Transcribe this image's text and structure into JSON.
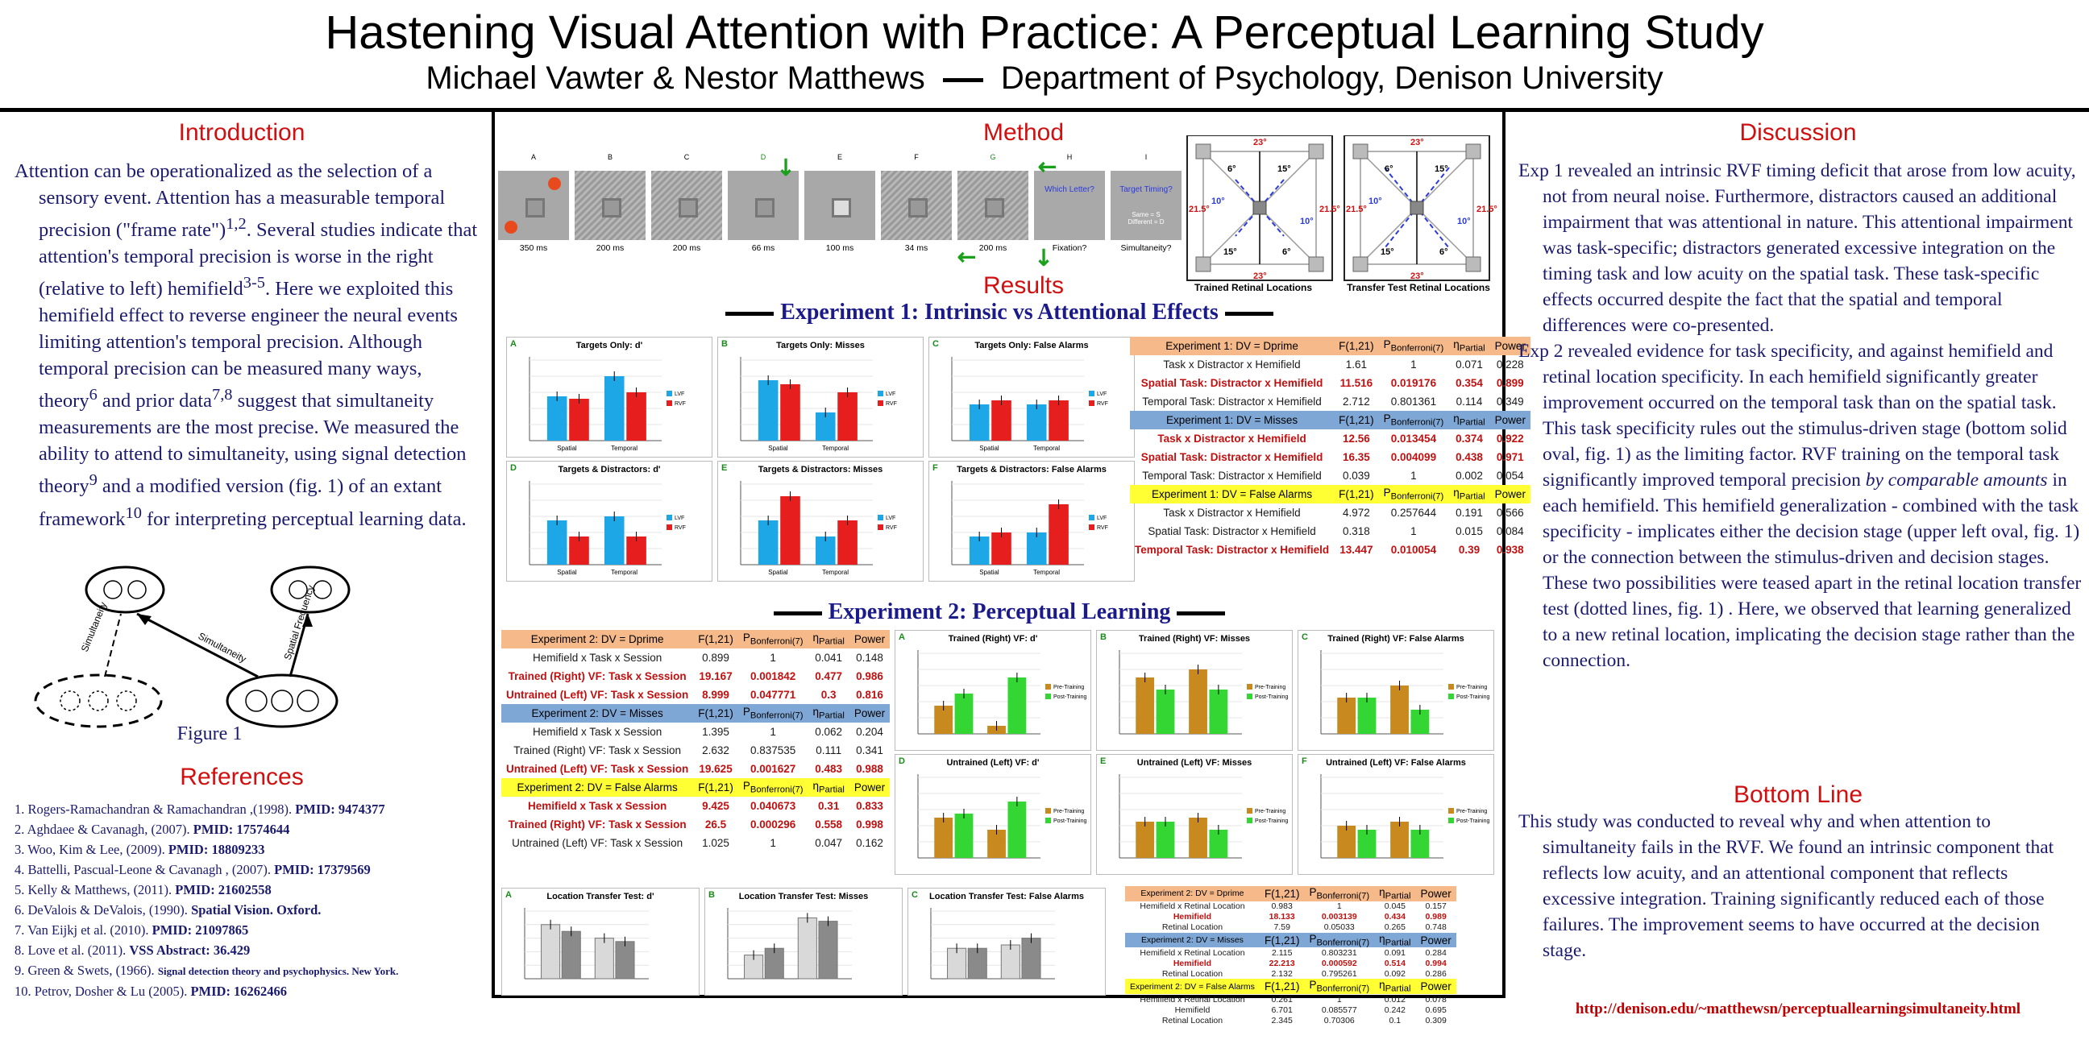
{
  "header": {
    "title": "Hastening Visual Attention with Practice: A Perceptual Learning Study",
    "authors": "Michael Vawter & Nestor Matthews",
    "department": "Department of Psychology, Denison University"
  },
  "intro": {
    "heading": "Introduction",
    "text_html": "Attention can be operationalized as the selection of a sensory event.  Attention has a measurable temporal precision (\"frame rate\")<sup>1,2</sup>. Several studies indicate that attention's temporal precision is worse in the right (relative to left) hemifield<sup>3-5</sup>. Here we exploited this hemifield effect to reverse engineer the neural events limiting attention's temporal precision. Although temporal precision can be measured many ways, theory<sup>6</sup> and prior data<sup>7,8</sup> suggest that simultaneity measurements are the most precise. We measured the ability to attend to simultaneity, using signal detection theory<sup>9</sup> and a modified version (fig. 1) of  an extant framework<sup>10</sup> for interpreting perceptual learning data.",
    "figure_caption": "Figure 1",
    "fig_labels": [
      "Simultaneity",
      "Simultaneity",
      "Spatial Frequency"
    ]
  },
  "references": {
    "heading": "References",
    "items": [
      {
        "text": "1. Rogers-Ramachandran & Ramachandran ,(1998). ",
        "bold": "PMID: 9474377"
      },
      {
        "text": "2. Aghdaee & Cavanagh, (2007). ",
        "bold": "PMID: 17574644"
      },
      {
        "text": "3. Woo, Kim & Lee, (2009). ",
        "bold": "PMID: 18809233"
      },
      {
        "text": "4. Battelli, Pascual-Leone & Cavanagh , (2007). ",
        "bold": "PMID: 17379569"
      },
      {
        "text": "5. Kelly & Matthews, (2011). ",
        "bold": "PMID: 21602558"
      },
      {
        "text": "6. DeValois & DeValois, (1990).  ",
        "bold": "Spatial Vision. Oxford."
      },
      {
        "text": "7. Van Eijkj et al. (2010). ",
        "bold": "PMID: 21097865"
      },
      {
        "text": "8. Love et al. (2011). ",
        "bold": "VSS Abstract: 36.429"
      },
      {
        "text": "9. Green & Swets, (1966). ",
        "bold": "Signal detection theory and psychophysics. New York."
      },
      {
        "text": "10. Petrov, Dosher & Lu (2005). ",
        "bold": "PMID: 16262466"
      }
    ]
  },
  "method": {
    "heading": "Method",
    "frame_letters": [
      "A",
      "B",
      "C",
      "D",
      "E",
      "F",
      "G",
      "H",
      "I"
    ],
    "durations": [
      "350 ms",
      "200 ms",
      "200 ms",
      "66 ms",
      "100 ms",
      "34 ms",
      "200 ms",
      "Fixation?",
      "Simultaneity?"
    ],
    "which_letter": "Which Letter?",
    "target_timing": "Target Timing?",
    "same_diff": "Same = S\nDifferent = D",
    "retinal_caption_1": "Trained Retinal Locations",
    "retinal_caption_2": "Transfer Test Retinal Locations",
    "retinal_labels": [
      "23°",
      "6°",
      "15°",
      "10°",
      "21.5°"
    ]
  },
  "results": {
    "heading": "Results",
    "exp1_banner": "Experiment 1: Intrinsic vs Attentional Effects",
    "exp2_banner": "Experiment 2: Perceptual Learning",
    "exp1_panels": [
      {
        "letter": "A",
        "title": "Targets Only: d'",
        "x": [
          "Spatial",
          "Temporal"
        ],
        "legend": [
          "LVF",
          "RVF"
        ],
        "ylim": [
          0,
          3
        ]
      },
      {
        "letter": "B",
        "title": "Targets Only: Misses",
        "x": [
          "Spatial",
          "Temporal"
        ],
        "legend": [
          "LVF",
          "RVF"
        ],
        "ylim": [
          0,
          0.4
        ]
      },
      {
        "letter": "C",
        "title": "Targets Only: False Alarms",
        "x": [
          "Spatial",
          "Temporal"
        ],
        "legend": [
          "LVF",
          "RVF"
        ],
        "ylim": [
          0,
          0.4
        ]
      },
      {
        "letter": "D",
        "title": "Targets & Distractors: d'",
        "x": [
          "Spatial",
          "Temporal"
        ],
        "legend": [
          "LVF",
          "RVF"
        ],
        "ylim": [
          0,
          3
        ]
      },
      {
        "letter": "E",
        "title": "Targets & Distractors: Misses",
        "x": [
          "Spatial",
          "Temporal"
        ],
        "legend": [
          "LVF",
          "RVF"
        ],
        "ylim": [
          0,
          0.4
        ]
      },
      {
        "letter": "F",
        "title": "Targets & Distractors: False Alarms",
        "x": [
          "Spatial",
          "Temporal"
        ],
        "legend": [
          "LVF",
          "RVF"
        ],
        "ylim": [
          0,
          0.4
        ]
      }
    ],
    "exp2_panels": [
      {
        "letter": "A",
        "title": "Trained (Right) VF: d'",
        "legend": [
          "Pre-Training",
          "Post-Training"
        ]
      },
      {
        "letter": "B",
        "title": "Trained (Right) VF: Misses",
        "legend": [
          "Pre-Training",
          "Post-Training"
        ]
      },
      {
        "letter": "C",
        "title": "Trained (Right) VF: False Alarms",
        "legend": [
          "Pre-Training",
          "Post-Training"
        ]
      },
      {
        "letter": "D",
        "title": "Untrained (Left) VF: d'",
        "legend": [
          "Pre-Training",
          "Post-Training"
        ]
      },
      {
        "letter": "E",
        "title": "Untrained (Left) VF: Misses",
        "legend": [
          "Pre-Training",
          "Post-Training"
        ]
      },
      {
        "letter": "F",
        "title": "Untrained (Left) VF: False Alarms",
        "legend": [
          "Pre-Training",
          "Post-Training"
        ]
      }
    ],
    "transfer_panels": [
      {
        "letter": "A",
        "title": "Location Transfer Test: d'"
      },
      {
        "letter": "B",
        "title": "Location Transfer Test: Misses"
      },
      {
        "letter": "C",
        "title": "Location Transfer Test: False Alarms"
      }
    ],
    "col_headers": [
      "F(1,21)",
      "P<sub>Bonferroni(7)</sub>",
      "η<sub>Partial</sub>",
      "Power"
    ],
    "exp1_table": [
      {
        "head": "Experiment 1: DV = Dprime",
        "color": "#f5b98a",
        "rows": [
          {
            "label": "Task x Distractor x Hemifield",
            "v": [
              "1.61",
              "1",
              "0.071",
              "0.228"
            ],
            "sig": false
          },
          {
            "label": "Spatial Task: Distractor x Hemifield",
            "v": [
              "11.516",
              "0.019176",
              "0.354",
              "0.899"
            ],
            "sig": true
          },
          {
            "label": "Temporal Task: Distractor x Hemifield",
            "v": [
              "2.712",
              "0.801361",
              "0.114",
              "0.349"
            ],
            "sig": false
          }
        ]
      },
      {
        "head": "Experiment 1: DV = Misses",
        "color": "#7fa7d6",
        "rows": [
          {
            "label": "Task x Distractor x Hemifield",
            "v": [
              "12.56",
              "0.013454",
              "0.374",
              "0.922"
            ],
            "sig": true
          },
          {
            "label": "Spatial Task: Distractor x Hemifield",
            "v": [
              "16.35",
              "0.004099",
              "0.438",
              "0.971"
            ],
            "sig": true
          },
          {
            "label": "Temporal Task: Distractor x Hemifield",
            "v": [
              "0.039",
              "1",
              "0.002",
              "0.054"
            ],
            "sig": false
          }
        ]
      },
      {
        "head": "Experiment 1: DV = False Alarms",
        "color": "#ffff33",
        "rows": [
          {
            "label": "Task x Distractor x Hemifield",
            "v": [
              "4.972",
              "0.257644",
              "0.191",
              "0.566"
            ],
            "sig": false
          },
          {
            "label": "Spatial Task: Distractor x Hemifield",
            "v": [
              "0.318",
              "1",
              "0.015",
              "0.084"
            ],
            "sig": false
          },
          {
            "label": "Temporal Task: Distractor x Hemifield",
            "v": [
              "13.447",
              "0.010054",
              "0.39",
              "0.938"
            ],
            "sig": true
          }
        ]
      }
    ],
    "exp2_table": [
      {
        "head": "Experiment 2: DV = Dprime",
        "color": "#f5b98a",
        "rows": [
          {
            "label": "Hemifield x Task x Session",
            "v": [
              "0.899",
              "1",
              "0.041",
              "0.148"
            ],
            "sig": false
          },
          {
            "label": "Trained (Right) VF: Task x Session",
            "v": [
              "19.167",
              "0.001842",
              "0.477",
              "0.986"
            ],
            "sig": true
          },
          {
            "label": "Untrained (Left) VF: Task x Session",
            "v": [
              "8.999",
              "0.047771",
              "0.3",
              "0.816"
            ],
            "sig": true
          }
        ]
      },
      {
        "head": "Experiment 2: DV = Misses",
        "color": "#7fa7d6",
        "rows": [
          {
            "label": "Hemifield x Task x Session",
            "v": [
              "1.395",
              "1",
              "0.062",
              "0.204"
            ],
            "sig": false
          },
          {
            "label": "Trained (Right) VF: Task x Session",
            "v": [
              "2.632",
              "0.837535",
              "0.111",
              "0.341"
            ],
            "sig": false
          },
          {
            "label": "Untrained (Left) VF: Task x Session",
            "v": [
              "19.625",
              "0.001627",
              "0.483",
              "0.988"
            ],
            "sig": true
          }
        ]
      },
      {
        "head": "Experiment 2: DV = False Alarms",
        "color": "#ffff33",
        "rows": [
          {
            "label": "Hemifield x Task x Session",
            "v": [
              "9.425",
              "0.040673",
              "0.31",
              "0.833"
            ],
            "sig": true
          },
          {
            "label": "Trained (Right) VF: Task x Session",
            "v": [
              "26.5",
              "0.000296",
              "0.558",
              "0.998"
            ],
            "sig": true
          },
          {
            "label": "Untrained (Left) VF: Task x Session",
            "v": [
              "1.025",
              "1",
              "0.047",
              "0.162"
            ],
            "sig": false
          }
        ]
      }
    ],
    "transfer_table": [
      {
        "head": "Experiment 2: DV = Dprime",
        "color": "#f5b98a",
        "rows": [
          {
            "label": "Hemifield x Retinal Location",
            "v": [
              "0.983",
              "1",
              "0.045",
              "0.157"
            ],
            "sig": false
          },
          {
            "label": "Hemifield",
            "v": [
              "18.133",
              "0.003139",
              "0.434",
              "0.989"
            ],
            "sig": true
          },
          {
            "label": "Retinal Location",
            "v": [
              "7.59",
              "0.05033",
              "0.265",
              "0.748"
            ],
            "sig": false
          }
        ]
      },
      {
        "head": "Experiment 2: DV = Misses",
        "color": "#7fa7d6",
        "rows": [
          {
            "label": "Hemifield x Retinal Location",
            "v": [
              "2.115",
              "0.803231",
              "0.091",
              "0.284"
            ],
            "sig": false
          },
          {
            "label": "Hemifield",
            "v": [
              "22.213",
              "0.000592",
              "0.514",
              "0.994"
            ],
            "sig": true
          },
          {
            "label": "Retinal Location",
            "v": [
              "2.132",
              "0.795261",
              "0.092",
              "0.286"
            ],
            "sig": false
          }
        ]
      },
      {
        "head": "Experiment 2: DV = False Alarms",
        "color": "#ffff33",
        "rows": [
          {
            "label": "Hemifield x Retinal Location",
            "v": [
              "0.261",
              "1",
              "0.012",
              "0.078"
            ],
            "sig": false
          },
          {
            "label": "Hemifield",
            "v": [
              "6.701",
              "0.085577",
              "0.242",
              "0.695"
            ],
            "sig": false
          },
          {
            "label": "Retinal Location",
            "v": [
              "2.345",
              "0.70306",
              "0.1",
              "0.309"
            ],
            "sig": false
          }
        ]
      }
    ]
  },
  "discussion": {
    "heading": "Discussion",
    "p1_html": "Exp 1 revealed an intrinsic RVF timing deficit that arose from low acuity, not from neural noise.  Furthermore, distractors caused an additional impairment that was attentional in nature.  This attentional impairment was task-specific; distractors generated excessive integration on the timing task and low acuity on the spatial task.  These task-specific effects occurred despite the fact that the spatial and temporal differences were co-presented.",
    "p2_html": "Exp 2 revealed evidence for task specificity, and against hemifield and retinal location specificity.  In each hemifield significantly greater improvement occurred on the temporal task than on the spatial task.  This task specificity rules out the stimulus-driven stage (bottom solid oval, fig. 1) as the limiting factor.  RVF training on the temporal task significantly improved temporal precision  <i>by comparable amounts</i> in each hemifield.  This hemifield generalization - combined with the task specificity - implicates either the decision stage  (upper left oval, fig. 1) or the connection between the stimulus-driven and decision stages. These two possibilities were teased apart in the retinal location transfer test (dotted lines, fig. 1) .  Here, we observed that learning generalized to a new retinal location, implicating the decision stage rather than the connection."
  },
  "bottom_line": {
    "heading": "Bottom Line",
    "text": "This study was conducted to reveal why and when attention to simultaneity fails in the RVF.  We found an intrinsic component that reflects low acuity, and an attentional component that reflects excessive integration. Training significantly reduced each of those failures.  The improvement seems to have occurred at the decision stage."
  },
  "footer": {
    "url": "http://denison.edu/~matthewsn/perceptuallearningsimultaneity.html"
  },
  "colors": {
    "heading_red": "#d01010",
    "text_navy": "#1a1a6e",
    "lvf_blue": "#1ea7e6",
    "rvf_red": "#e61e1e",
    "pre_orange": "#c8891e",
    "post_green": "#33d633"
  }
}
